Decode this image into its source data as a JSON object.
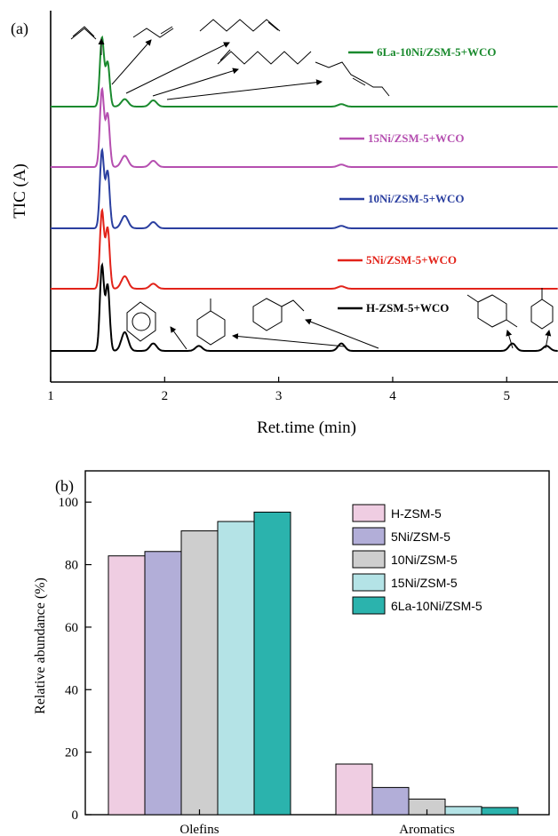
{
  "chart_data": [
    {
      "panel_label": "(a)",
      "type": "line",
      "xlabel": "Ret.time (min)",
      "ylabel": "TIC (A)",
      "xlim": [
        1,
        5.45
      ],
      "x_ticks": [
        "1",
        "2",
        "3",
        "4",
        "5"
      ],
      "grid": false,
      "series": [
        {
          "name": "6La-10Ni/ZSM-5+WCO",
          "color": "#1a8a2e",
          "peaks": [
            {
              "x": 1.45,
              "h": 0.55
            },
            {
              "x": 1.5,
              "h": 0.35
            },
            {
              "x": 1.65,
              "h": 0.06
            },
            {
              "x": 1.9,
              "h": 0.05
            },
            {
              "x": 3.55,
              "h": 0.02
            }
          ]
        },
        {
          "name": "15Ni/ZSM-5+WCO",
          "color": "#b54fb0",
          "peaks": [
            {
              "x": 1.45,
              "h": 0.62
            },
            {
              "x": 1.5,
              "h": 0.42
            },
            {
              "x": 1.65,
              "h": 0.09
            },
            {
              "x": 1.9,
              "h": 0.05
            },
            {
              "x": 3.55,
              "h": 0.02
            }
          ]
        },
        {
          "name": "10Ni/ZSM-5+WCO",
          "color": "#2b3fa0",
          "peaks": [
            {
              "x": 1.45,
              "h": 0.62
            },
            {
              "x": 1.5,
              "h": 0.45
            },
            {
              "x": 1.65,
              "h": 0.1
            },
            {
              "x": 1.9,
              "h": 0.05
            },
            {
              "x": 3.55,
              "h": 0.02
            }
          ]
        },
        {
          "name": "5Ni/ZSM-5+WCO",
          "color": "#e2231a",
          "peaks": [
            {
              "x": 1.45,
              "h": 0.62
            },
            {
              "x": 1.5,
              "h": 0.48
            },
            {
              "x": 1.65,
              "h": 0.1
            },
            {
              "x": 1.9,
              "h": 0.04
            },
            {
              "x": 3.55,
              "h": 0.02
            }
          ]
        },
        {
          "name": "H-ZSM-5+WCO",
          "color": "#000000",
          "peaks": [
            {
              "x": 1.45,
              "h": 0.68
            },
            {
              "x": 1.5,
              "h": 0.52
            },
            {
              "x": 1.65,
              "h": 0.15
            },
            {
              "x": 1.9,
              "h": 0.06
            },
            {
              "x": 2.3,
              "h": 0.04
            },
            {
              "x": 3.55,
              "h": 0.06
            },
            {
              "x": 5.05,
              "h": 0.06
            },
            {
              "x": 5.35,
              "h": 0.04
            }
          ]
        }
      ]
    },
    {
      "panel_label": "(b)",
      "type": "bar",
      "xlabel": "",
      "ylabel": "Relative abundance (%)",
      "ylim": [
        0,
        110
      ],
      "y_ticks": [
        0,
        20,
        40,
        60,
        80,
        100
      ],
      "categories": [
        "Olefins",
        "Aromatics"
      ],
      "legend_position": "top-right",
      "series": [
        {
          "name": "H-ZSM-5",
          "color": "#efcde2",
          "values": [
            82.8,
            16.2
          ]
        },
        {
          "name": "5Ni/ZSM-5",
          "color": "#b2aed8",
          "values": [
            84.2,
            8.7
          ]
        },
        {
          "name": "10Ni/ZSM-5",
          "color": "#cecece",
          "values": [
            90.8,
            5.0
          ]
        },
        {
          "name": "15Ni/ZSM-5",
          "color": "#b4e3e6",
          "values": [
            93.8,
            2.6
          ]
        },
        {
          "name": "6La-10Ni/ZSM-5",
          "color": "#2bb3ad",
          "values": [
            96.8,
            2.3
          ]
        }
      ]
    }
  ]
}
